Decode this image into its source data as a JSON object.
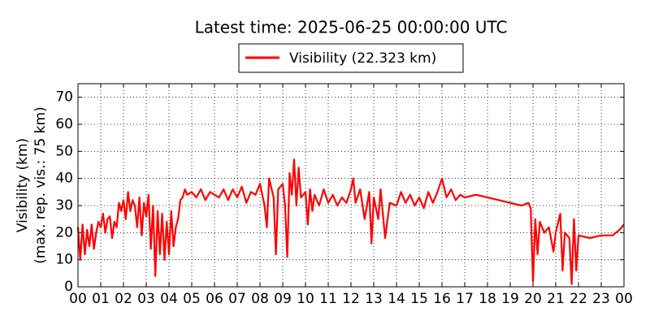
{
  "chart_data": {
    "type": "line",
    "title": "Latest time: 2025-06-25 00:00:00 UTC",
    "ylabel": [
      "Visibility (km)",
      "(max. rep. vis.: 75 km)"
    ],
    "xlim": [
      0,
      24
    ],
    "ylim": [
      0,
      75
    ],
    "xticks": [
      {
        "value": 0,
        "label": "00"
      },
      {
        "value": 1,
        "label": "01"
      },
      {
        "value": 2,
        "label": "02"
      },
      {
        "value": 3,
        "label": "03"
      },
      {
        "value": 4,
        "label": "04"
      },
      {
        "value": 5,
        "label": "05"
      },
      {
        "value": 6,
        "label": "06"
      },
      {
        "value": 7,
        "label": "07"
      },
      {
        "value": 8,
        "label": "08"
      },
      {
        "value": 9,
        "label": "09"
      },
      10,
      11,
      12,
      13,
      14,
      15,
      16,
      17,
      18,
      19,
      20,
      21,
      22,
      23,
      {
        "value": 24,
        "label": "00"
      }
    ],
    "yticks": [
      0,
      10,
      20,
      30,
      40,
      50,
      60,
      70
    ],
    "grid": true,
    "legend": "upper center",
    "series": [
      {
        "name": "Visibility (22.323 km)",
        "color": "#ff0000",
        "x": [
          0,
          0.1,
          0.2,
          0.3,
          0.4,
          0.5,
          0.6,
          0.7,
          0.8,
          0.9,
          1.0,
          1.1,
          1.2,
          1.3,
          1.4,
          1.5,
          1.6,
          1.7,
          1.8,
          1.9,
          2.0,
          2.1,
          2.2,
          2.3,
          2.4,
          2.5,
          2.6,
          2.7,
          2.8,
          2.9,
          3.0,
          3.1,
          3.2,
          3.3,
          3.4,
          3.5,
          3.6,
          3.7,
          3.8,
          3.9,
          4.0,
          4.1,
          4.2,
          4.3,
          4.4,
          4.5,
          4.6,
          4.7,
          4.8,
          5.0,
          5.2,
          5.4,
          5.6,
          5.8,
          6.0,
          6.2,
          6.4,
          6.6,
          6.8,
          7.0,
          7.2,
          7.4,
          7.6,
          7.8,
          8.0,
          8.2,
          8.3,
          8.4,
          8.6,
          8.7,
          8.8,
          9.0,
          9.1,
          9.2,
          9.3,
          9.4,
          9.5,
          9.6,
          9.7,
          9.8,
          10.0,
          10.1,
          10.2,
          10.3,
          10.4,
          10.6,
          10.8,
          11.0,
          11.2,
          11.4,
          11.6,
          11.8,
          12.0,
          12.1,
          12.2,
          12.4,
          12.6,
          12.8,
          12.9,
          13.0,
          13.2,
          13.3,
          13.5,
          13.7,
          14.0,
          14.2,
          14.4,
          14.6,
          14.8,
          15.0,
          15.2,
          15.4,
          15.6,
          15.8,
          16.0,
          16.2,
          16.4,
          16.6,
          16.8,
          17.0,
          17.5,
          18.0,
          18.5,
          19.0,
          19.5,
          19.8,
          19.9,
          20.0,
          20.1,
          20.2,
          20.3,
          20.5,
          20.7,
          20.9,
          21.0,
          21.2,
          21.3,
          21.4,
          21.6,
          21.7,
          21.8,
          21.9,
          22.0,
          22.5,
          23.0,
          23.5,
          23.8,
          24
        ],
        "values": [
          22,
          10,
          23,
          12,
          21,
          15,
          23,
          14,
          20,
          24,
          22,
          27,
          20,
          25,
          26,
          18,
          24,
          22,
          31,
          28,
          32,
          25,
          35,
          28,
          32,
          30,
          22,
          33,
          19,
          31,
          26,
          34,
          14,
          30,
          4,
          28,
          12,
          27,
          10,
          24,
          12,
          28,
          15,
          22,
          25,
          32,
          33,
          36,
          34,
          35,
          33,
          36,
          32,
          35,
          34,
          33,
          36,
          32,
          36,
          33,
          37,
          31,
          35,
          34,
          38,
          30,
          22,
          40,
          33,
          12,
          36,
          38,
          30,
          11,
          42,
          34,
          47,
          30,
          44,
          33,
          35,
          23,
          36,
          28,
          34,
          30,
          36,
          31,
          34,
          30,
          33,
          31,
          36,
          40,
          31,
          36,
          25,
          35,
          16,
          33,
          25,
          36,
          18,
          31,
          30,
          35,
          31,
          34,
          30,
          33,
          29,
          35,
          31,
          35,
          40,
          33,
          36,
          32,
          34,
          33,
          34,
          33,
          32,
          31,
          30,
          31,
          29,
          2,
          25,
          12,
          24,
          20,
          22,
          13,
          20,
          27,
          6,
          20,
          18,
          1,
          25,
          6,
          19,
          18,
          19,
          19,
          21,
          23
        ]
      }
    ]
  }
}
